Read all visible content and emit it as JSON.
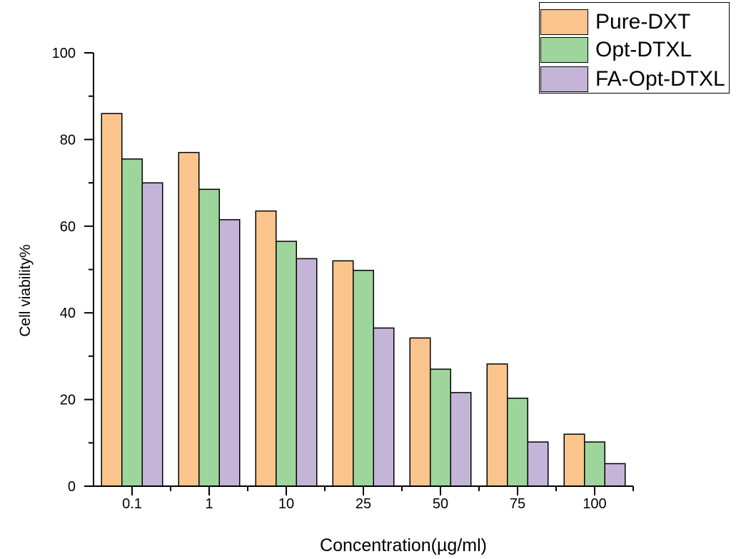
{
  "chart_data": {
    "type": "bar",
    "title": "",
    "xlabel": "Concentration(µg/ml)",
    "ylabel": "Cell viability%",
    "categories": [
      "0.1",
      "1",
      "10",
      "25",
      "50",
      "75",
      "100"
    ],
    "series": [
      {
        "name": "Pure-DXT",
        "color": "#FAC58D",
        "values": [
          86.0,
          77.0,
          63.5,
          52.0,
          34.2,
          28.2,
          12.0
        ]
      },
      {
        "name": "Opt-DTXL",
        "color": "#9ED59C",
        "values": [
          75.5,
          68.5,
          56.5,
          49.8,
          27.0,
          20.3,
          10.2
        ]
      },
      {
        "name": "FA-Opt-DTXL",
        "color": "#C4B4D7",
        "values": [
          70.0,
          61.5,
          52.5,
          36.5,
          21.6,
          10.2,
          5.2
        ]
      }
    ],
    "ylim": [
      0,
      100
    ],
    "yticks": [
      0,
      20,
      40,
      60,
      80,
      100
    ],
    "yminorticks": [
      10,
      30,
      50,
      70,
      90
    ],
    "bar_outline": "#000000",
    "axis_color": "#000000",
    "text_color": "#000000",
    "grid": false,
    "legend_position": "top-right"
  }
}
